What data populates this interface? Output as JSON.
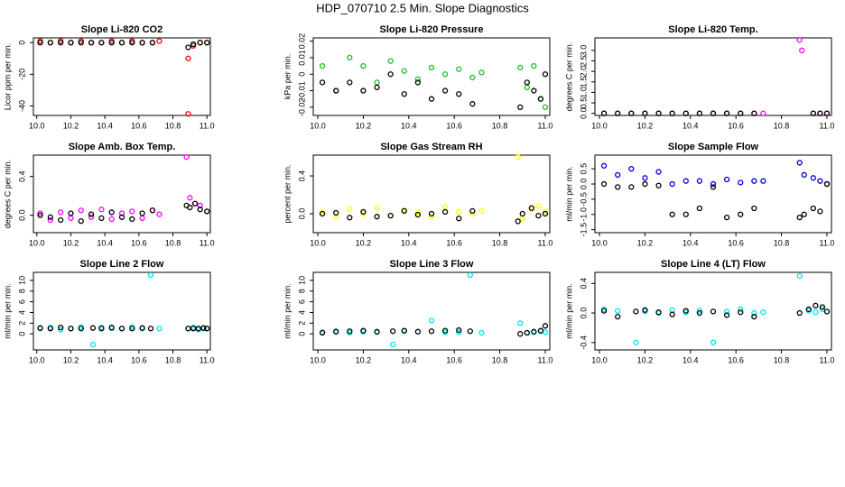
{
  "title": "HDP_070710  2.5 Min. Slope Diagnostics",
  "chart_data": [
    {
      "type": "scatter",
      "title": "Slope Li-820 CO2",
      "y_label": "Licor ppm per min.",
      "x": [
        10.02,
        10.08,
        10.14,
        10.2,
        10.26,
        10.32,
        10.38,
        10.44,
        10.5,
        10.56,
        10.62,
        10.68,
        10.72,
        10.89,
        10.89,
        10.92,
        10.96,
        11.0
      ],
      "series": [
        {
          "color": "#ff0000",
          "values": [
            1,
            0,
            1,
            0,
            1,
            0,
            0,
            1,
            0,
            1,
            0,
            0,
            1,
            -10,
            -45,
            -2,
            0,
            0
          ]
        },
        {
          "color": "#000000",
          "values": [
            0,
            0,
            0,
            0,
            0,
            0,
            0,
            0,
            0,
            0,
            0,
            0,
            null,
            -3,
            null,
            -1,
            0,
            0
          ]
        }
      ],
      "xlim": [
        9.98,
        11.02
      ],
      "xticks": [
        {
          "value": 10,
          "label": "10.0"
        },
        {
          "value": 10.2,
          "label": "10.2"
        },
        {
          "value": 10.4,
          "label": "10.4"
        },
        {
          "value": 10.6,
          "label": "10.6"
        },
        {
          "value": 10.8,
          "label": "10.8"
        },
        {
          "value": 11,
          "label": "11.0"
        }
      ],
      "ylim": [
        -46,
        3
      ],
      "yticks": [
        -40,
        -20,
        0
      ]
    },
    {
      "type": "scatter",
      "title": "Slope Li-820 Pressure",
      "y_label": "kPa per min.",
      "x": [
        10.02,
        10.08,
        10.14,
        10.2,
        10.26,
        10.32,
        10.38,
        10.44,
        10.5,
        10.56,
        10.62,
        10.68,
        10.72,
        10.89,
        10.92,
        10.95,
        10.98,
        11.0
      ],
      "series": [
        {
          "color": "#22bb22",
          "values": [
            0.005,
            -0.01,
            0.01,
            0.005,
            -0.005,
            0.008,
            0.002,
            -0.003,
            0.004,
            0,
            0.003,
            -0.002,
            0.001,
            0.004,
            -0.008,
            0.005,
            -0.015,
            -0.02
          ]
        },
        {
          "color": "#000000",
          "values": [
            -0.005,
            -0.01,
            -0.005,
            -0.01,
            -0.008,
            0,
            -0.012,
            -0.005,
            -0.015,
            -0.01,
            -0.012,
            -0.018,
            null,
            -0.02,
            -0.005,
            -0.01,
            -0.015,
            0
          ]
        }
      ],
      "xlim": [
        9.98,
        11.02
      ],
      "xticks": [
        {
          "value": 10,
          "label": "10.0"
        },
        {
          "value": 10.2,
          "label": "10.2"
        },
        {
          "value": 10.4,
          "label": "10.4"
        },
        {
          "value": 10.6,
          "label": "10.6"
        },
        {
          "value": 10.8,
          "label": "10.8"
        },
        {
          "value": 11,
          "label": "11.0"
        }
      ],
      "ylim": [
        -0.025,
        0.022
      ],
      "yticks": [
        -0.02,
        -0.01,
        0,
        0.01,
        0.02
      ]
    },
    {
      "type": "scatter",
      "title": "Slope Li-820 Temp.",
      "y_label": "degrees C per min.",
      "x": [
        10.02,
        10.08,
        10.14,
        10.2,
        10.26,
        10.32,
        10.38,
        10.44,
        10.5,
        10.56,
        10.62,
        10.68,
        10.72,
        10.88,
        10.89,
        10.94,
        10.97,
        11.0
      ],
      "series": [
        {
          "color": "#ff00ff",
          "values": [
            0,
            0,
            0,
            0,
            0,
            0,
            0,
            0,
            0,
            0,
            0,
            0,
            0,
            3.5,
            3.0,
            0,
            0,
            0
          ]
        },
        {
          "color": "#000000",
          "values": [
            0,
            0,
            0,
            0,
            0,
            0,
            0,
            0,
            0,
            0,
            0,
            0,
            null,
            null,
            null,
            0,
            0,
            0
          ]
        }
      ],
      "xlim": [
        9.98,
        11.02
      ],
      "xticks": [
        {
          "value": 10,
          "label": "10.0"
        },
        {
          "value": 10.2,
          "label": "10.2"
        },
        {
          "value": 10.4,
          "label": "10.4"
        },
        {
          "value": 10.6,
          "label": "10.6"
        },
        {
          "value": 10.8,
          "label": "10.8"
        },
        {
          "value": 11,
          "label": "11.0"
        }
      ],
      "ylim": [
        -0.1,
        3.6
      ],
      "yticks": [
        {
          "value": 0,
          "label": "0.0"
        },
        {
          "value": 0.5,
          "label": "0.5"
        },
        {
          "value": 1,
          "label": "1.0"
        },
        {
          "value": 1.5,
          "label": "1.5"
        },
        {
          "value": 2,
          "label": "2.0"
        },
        {
          "value": 2.5,
          "label": "2.5"
        },
        {
          "value": 3,
          "label": "3.0"
        }
      ]
    },
    {
      "type": "scatter",
      "title": "Slope Amb. Box Temp.",
      "y_label": "degrees C per min.",
      "x": [
        10.02,
        10.08,
        10.14,
        10.2,
        10.26,
        10.32,
        10.38,
        10.44,
        10.5,
        10.56,
        10.62,
        10.68,
        10.72,
        10.88,
        10.9,
        10.93,
        10.96,
        11.0
      ],
      "series": [
        {
          "color": "#ff00ff",
          "values": [
            0.02,
            -0.05,
            0.03,
            -0.03,
            0.05,
            -0.02,
            0.06,
            -0.04,
            0.02,
            0.04,
            -0.03,
            0.05,
            0.01,
            0.6,
            0.18,
            0.12,
            0.1,
            0.04
          ]
        },
        {
          "color": "#000000",
          "values": [
            0,
            -0.02,
            -0.05,
            0.02,
            -0.06,
            0.01,
            -0.03,
            0.03,
            -0.02,
            -0.04,
            0.02,
            0.05,
            null,
            0.1,
            0.08,
            0.12,
            0.06,
            0.04
          ]
        }
      ],
      "xlim": [
        9.98,
        11.02
      ],
      "xticks": [
        {
          "value": 10,
          "label": "10.0"
        },
        {
          "value": 10.2,
          "label": "10.2"
        },
        {
          "value": 10.4,
          "label": "10.4"
        },
        {
          "value": 10.6,
          "label": "10.6"
        },
        {
          "value": 10.8,
          "label": "10.8"
        },
        {
          "value": 11,
          "label": "11.0"
        }
      ],
      "ylim": [
        -0.18,
        0.62
      ],
      "yticks": [
        {
          "value": 0,
          "label": "0.0"
        },
        {
          "value": 0.4,
          "label": "0.4"
        }
      ]
    },
    {
      "type": "scatter",
      "title": "Slope Gas Stream RH",
      "y_label": "percent per min.",
      "x": [
        10.02,
        10.08,
        10.14,
        10.2,
        10.26,
        10.32,
        10.38,
        10.44,
        10.5,
        10.56,
        10.62,
        10.68,
        10.72,
        10.88,
        10.9,
        10.94,
        10.97,
        11.0
      ],
      "series": [
        {
          "color": "#ffff00",
          "values": [
            0.02,
            -0.03,
            0.05,
            0,
            0.06,
            -0.02,
            0.04,
            0.01,
            -0.03,
            0.07,
            0.02,
            0,
            0.03,
            0.6,
            -0.05,
            0.05,
            0.08,
            0.02
          ]
        },
        {
          "color": "#000000",
          "values": [
            0,
            0.01,
            -0.04,
            0.02,
            -0.03,
            -0.02,
            0.03,
            -0.01,
            0,
            0.02,
            -0.05,
            0.03,
            null,
            -0.08,
            0,
            0.06,
            -0.02,
            0
          ]
        }
      ],
      "xlim": [
        9.98,
        11.02
      ],
      "xticks": [
        {
          "value": 10,
          "label": "10.0"
        },
        {
          "value": 10.2,
          "label": "10.2"
        },
        {
          "value": 10.4,
          "label": "10.4"
        },
        {
          "value": 10.6,
          "label": "10.6"
        },
        {
          "value": 10.8,
          "label": "10.8"
        },
        {
          "value": 11,
          "label": "11.0"
        }
      ],
      "ylim": [
        -0.2,
        0.62
      ],
      "yticks": [
        {
          "value": 0,
          "label": "0.0"
        },
        {
          "value": 0.4,
          "label": "0.4"
        }
      ]
    },
    {
      "type": "scatter",
      "title": "Slope Sample Flow",
      "y_label": "ml/min per min.",
      "x": [
        10.02,
        10.08,
        10.14,
        10.2,
        10.26,
        10.32,
        10.38,
        10.44,
        10.5,
        10.56,
        10.62,
        10.68,
        10.72,
        10.88,
        10.9,
        10.94,
        10.97,
        11.0
      ],
      "series": [
        {
          "color": "#0000dd",
          "values": [
            0.6,
            0.3,
            0.5,
            0.2,
            0.4,
            0,
            0.1,
            0.1,
            0,
            0.15,
            0.05,
            0.1,
            0.1,
            0.7,
            0.3,
            0.2,
            0.1,
            0
          ]
        },
        {
          "color": "#000000",
          "values": [
            0,
            -0.1,
            -0.1,
            0,
            -0.05,
            -1,
            -1,
            -0.8,
            -0.1,
            -1.1,
            -1,
            -0.8,
            null,
            -1.1,
            -1,
            -0.8,
            -0.9,
            0
          ]
        }
      ],
      "xlim": [
        9.98,
        11.02
      ],
      "xticks": [
        {
          "value": 10,
          "label": "10.0"
        },
        {
          "value": 10.2,
          "label": "10.2"
        },
        {
          "value": 10.4,
          "label": "10.4"
        },
        {
          "value": 10.6,
          "label": "10.6"
        },
        {
          "value": 10.8,
          "label": "10.8"
        },
        {
          "value": 11,
          "label": "11.0"
        }
      ],
      "ylim": [
        -1.6,
        0.95
      ],
      "yticks": [
        {
          "value": -1.5,
          "label": "-1.5"
        },
        {
          "value": -1,
          "label": "-1.0"
        },
        {
          "value": -0.5,
          "label": "-0.5"
        },
        {
          "value": 0,
          "label": "0.0"
        },
        {
          "value": 0.5,
          "label": "0.5"
        }
      ]
    },
    {
      "type": "scatter",
      "title": "Slope Line 2 Flow",
      "y_label": "ml/min per min.",
      "x": [
        10.02,
        10.08,
        10.14,
        10.2,
        10.26,
        10.33,
        10.38,
        10.44,
        10.5,
        10.56,
        10.62,
        10.67,
        10.72,
        10.89,
        10.92,
        10.95,
        10.98,
        11.0
      ],
      "series": [
        {
          "color": "#00e5ee",
          "values": [
            1,
            1.2,
            0.8,
            1,
            1.3,
            -2,
            1.2,
            1,
            1,
            1.3,
            1,
            11,
            1,
            1,
            1.2,
            0.8,
            1,
            1
          ]
        },
        {
          "color": "#000000",
          "values": [
            1.1,
            1,
            1.2,
            1,
            1,
            1.1,
            1,
            1.2,
            1,
            1,
            1.1,
            1,
            null,
            1,
            1,
            1,
            1.1,
            1
          ]
        }
      ],
      "xlim": [
        9.98,
        11.02
      ],
      "xticks": [
        {
          "value": 10,
          "label": "10.0"
        },
        {
          "value": 10.2,
          "label": "10.2"
        },
        {
          "value": 10.4,
          "label": "10.4"
        },
        {
          "value": 10.6,
          "label": "10.6"
        },
        {
          "value": 10.8,
          "label": "10.8"
        },
        {
          "value": 11,
          "label": "11.0"
        }
      ],
      "ylim": [
        -3,
        11.5
      ],
      "yticks": [
        0,
        2,
        4,
        6,
        8,
        10
      ]
    },
    {
      "type": "scatter",
      "title": "Slope Line 3 Flow",
      "y_label": "ml/min per min.",
      "x": [
        10.02,
        10.08,
        10.14,
        10.2,
        10.26,
        10.33,
        10.38,
        10.44,
        10.5,
        10.56,
        10.62,
        10.67,
        10.72,
        10.89,
        10.92,
        10.95,
        10.98,
        11.0
      ],
      "series": [
        {
          "color": "#00e5ee",
          "values": [
            0.3,
            0.5,
            0.2,
            0.4,
            0.3,
            -2,
            0.5,
            0.4,
            2.5,
            0.3,
            0.3,
            11,
            0.2,
            2,
            0.2,
            0.3,
            0.5,
            0.3
          ]
        },
        {
          "color": "#000000",
          "values": [
            0.2,
            0.4,
            0.5,
            0.6,
            0.4,
            0.5,
            0.6,
            0.4,
            0.5,
            0.6,
            0.7,
            0.5,
            null,
            0,
            0.2,
            0.4,
            0.6,
            1.5
          ]
        }
      ],
      "xlim": [
        9.98,
        11.02
      ],
      "xticks": [
        {
          "value": 10,
          "label": "10.0"
        },
        {
          "value": 10.2,
          "label": "10.2"
        },
        {
          "value": 10.4,
          "label": "10.4"
        },
        {
          "value": 10.6,
          "label": "10.6"
        },
        {
          "value": 10.8,
          "label": "10.8"
        },
        {
          "value": 11,
          "label": "11.0"
        }
      ],
      "ylim": [
        -3,
        11.5
      ],
      "yticks": [
        0,
        2,
        4,
        6,
        8,
        10
      ]
    },
    {
      "type": "scatter",
      "title": "Slope Line 4 (LT) Flow",
      "y_label": "ml/min per min.",
      "x": [
        10.02,
        10.08,
        10.16,
        10.2,
        10.26,
        10.32,
        10.38,
        10.44,
        10.5,
        10.56,
        10.62,
        10.68,
        10.72,
        10.88,
        10.92,
        10.95,
        10.98,
        11.0
      ],
      "series": [
        {
          "color": "#00e5ee",
          "values": [
            0.05,
            0.03,
            -0.4,
            0.02,
            0,
            0.04,
            0.01,
            0.03,
            -0.4,
            0.02,
            0.05,
            0,
            0.01,
            0.5,
            0.03,
            0.01,
            0.05,
            0.02
          ]
        },
        {
          "color": "#000000",
          "values": [
            0.03,
            -0.05,
            0.02,
            0.04,
            0.01,
            -0.02,
            0.03,
            0,
            0.02,
            -0.03,
            0.01,
            -0.05,
            null,
            0,
            0.05,
            0.1,
            0.08,
            0.02
          ]
        }
      ],
      "xlim": [
        9.98,
        11.02
      ],
      "xticks": [
        {
          "value": 10,
          "label": "10.0"
        },
        {
          "value": 10.2,
          "label": "10.2"
        },
        {
          "value": 10.4,
          "label": "10.4"
        },
        {
          "value": 10.6,
          "label": "10.6"
        },
        {
          "value": 10.8,
          "label": "10.8"
        },
        {
          "value": 11,
          "label": "11.0"
        }
      ],
      "ylim": [
        -0.5,
        0.55
      ],
      "yticks": [
        {
          "value": -0.4,
          "label": "-0.4"
        },
        {
          "value": 0,
          "label": "0.0"
        },
        {
          "value": 0.4,
          "label": "0.4"
        }
      ]
    }
  ]
}
